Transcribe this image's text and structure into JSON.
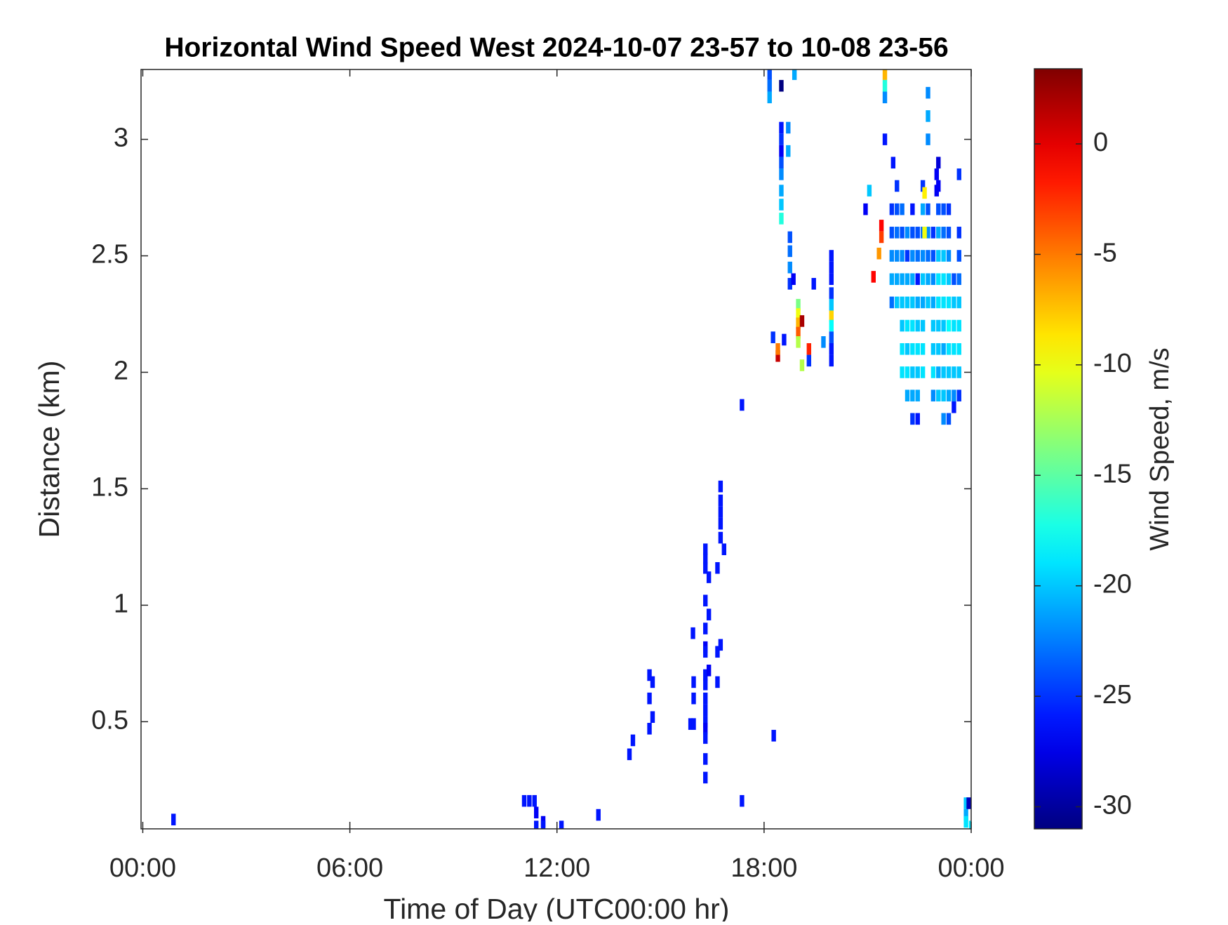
{
  "chart_data": {
    "type": "heatmap",
    "title": "Horizontal Wind Speed West 2024-10-07 23-57 to 10-08 23-56",
    "x_label": "Time of Day (UTC00:00 hr)",
    "y_label": "Distance (km)",
    "colorbar_label": "Wind Speed, m/s",
    "colormap": "jet",
    "xlim": [
      -0.05,
      24
    ],
    "xticks": [
      {
        "value": 0,
        "label": "00:00"
      },
      {
        "value": 6,
        "label": "06:00"
      },
      {
        "value": 12,
        "label": "12:00"
      },
      {
        "value": 18,
        "label": "18:00"
      },
      {
        "value": 24,
        "label": "00:00"
      }
    ],
    "ylim": [
      0.04,
      3.3
    ],
    "yticks": [
      0.5,
      1,
      1.5,
      2,
      2.5,
      3
    ],
    "clim": [
      -31,
      3.4
    ],
    "cticks": [
      -30,
      -25,
      -20,
      -15,
      -10,
      -5,
      0
    ],
    "cells": [
      [
        0.89,
        0.08,
        -26
      ],
      [
        11.05,
        0.16,
        -26
      ],
      [
        11.2,
        0.16,
        -26
      ],
      [
        11.35,
        0.16,
        -26
      ],
      [
        11.4,
        0.11,
        -27
      ],
      [
        11.6,
        0.07,
        -27
      ],
      [
        11.6,
        0.05,
        -26
      ],
      [
        11.4,
        0.05,
        -26
      ],
      [
        12.13,
        0.05,
        -26
      ],
      [
        13.2,
        0.1,
        -26
      ],
      [
        14.1,
        0.36,
        -26
      ],
      [
        14.2,
        0.42,
        -26
      ],
      [
        14.68,
        0.47,
        -26
      ],
      [
        14.77,
        0.52,
        -26
      ],
      [
        14.68,
        0.6,
        -26
      ],
      [
        14.68,
        0.7,
        -26
      ],
      [
        14.77,
        0.67,
        -26
      ],
      [
        15.94,
        0.88,
        -26
      ],
      [
        15.87,
        0.49,
        -26
      ],
      [
        15.96,
        0.49,
        -26
      ],
      [
        15.96,
        0.6,
        -26
      ],
      [
        15.96,
        0.67,
        -26
      ],
      [
        16.3,
        1.24,
        -26
      ],
      [
        16.3,
        1.2,
        -26
      ],
      [
        16.3,
        1.16,
        -26
      ],
      [
        16.3,
        1.02,
        -26
      ],
      [
        16.3,
        0.9,
        -26
      ],
      [
        16.3,
        0.82,
        -27
      ],
      [
        16.3,
        0.8,
        -26
      ],
      [
        16.3,
        0.7,
        -26
      ],
      [
        16.3,
        0.66,
        -26
      ],
      [
        16.3,
        0.6,
        -26
      ],
      [
        16.3,
        0.55,
        -26
      ],
      [
        16.3,
        0.5,
        -26
      ],
      [
        16.3,
        0.47,
        -27
      ],
      [
        16.3,
        0.43,
        -26
      ],
      [
        16.3,
        0.34,
        -26
      ],
      [
        16.3,
        0.26,
        -26
      ],
      [
        16.4,
        1.12,
        -26
      ],
      [
        16.4,
        0.96,
        -26
      ],
      [
        16.4,
        0.72,
        -27
      ],
      [
        16.65,
        1.16,
        -26
      ],
      [
        16.65,
        0.8,
        -26
      ],
      [
        16.74,
        0.83,
        -26
      ],
      [
        16.65,
        0.67,
        -26
      ],
      [
        16.74,
        1.51,
        -26
      ],
      [
        16.74,
        1.45,
        -26
      ],
      [
        16.74,
        1.4,
        -26
      ],
      [
        16.74,
        1.35,
        -26
      ],
      [
        16.74,
        1.29,
        -26
      ],
      [
        16.84,
        1.24,
        -26
      ],
      [
        17.36,
        1.86,
        -26
      ],
      [
        17.36,
        0.16,
        -26
      ],
      [
        18.28,
        0.44,
        -26
      ],
      [
        18.16,
        3.28,
        -24
      ],
      [
        18.16,
        3.23,
        -23
      ],
      [
        18.16,
        3.18,
        -21
      ],
      [
        18.5,
        3.23,
        -31
      ],
      [
        18.88,
        3.28,
        -21
      ],
      [
        18.5,
        3.05,
        -26
      ],
      [
        18.5,
        3.0,
        -25
      ],
      [
        18.5,
        2.95,
        -27
      ],
      [
        18.5,
        2.9,
        -24
      ],
      [
        18.7,
        3.05,
        -22
      ],
      [
        18.7,
        2.95,
        -21
      ],
      [
        18.5,
        2.85,
        -22
      ],
      [
        18.5,
        2.78,
        -21
      ],
      [
        18.5,
        2.72,
        -20
      ],
      [
        18.5,
        2.66,
        -17
      ],
      [
        18.75,
        2.58,
        -24
      ],
      [
        18.75,
        2.52,
        -23
      ],
      [
        18.75,
        2.45,
        -22
      ],
      [
        18.75,
        2.38,
        -25
      ],
      [
        18.85,
        2.4,
        -27
      ],
      [
        18.26,
        2.15,
        -25
      ],
      [
        18.4,
        2.07,
        1
      ],
      [
        18.4,
        2.1,
        -5
      ],
      [
        18.58,
        2.14,
        -26
      ],
      [
        18.99,
        2.29,
        -14
      ],
      [
        18.99,
        2.25,
        -10
      ],
      [
        18.99,
        2.21,
        -7
      ],
      [
        18.99,
        2.17,
        -4
      ],
      [
        18.99,
        2.13,
        -12
      ],
      [
        19.1,
        2.22,
        2
      ],
      [
        19.1,
        2.03,
        -12
      ],
      [
        19.3,
        2.1,
        -2
      ],
      [
        19.3,
        2.05,
        -25
      ],
      [
        19.44,
        2.38,
        -26
      ],
      [
        19.72,
        2.13,
        -22
      ],
      [
        19.95,
        2.29,
        -20
      ],
      [
        19.95,
        2.24,
        -8
      ],
      [
        19.95,
        2.2,
        -18
      ],
      [
        19.95,
        2.15,
        -24
      ],
      [
        19.95,
        2.1,
        -26
      ],
      [
        19.95,
        2.05,
        -26
      ],
      [
        19.95,
        2.5,
        -26
      ],
      [
        19.95,
        2.45,
        -26
      ],
      [
        19.95,
        2.4,
        -26
      ],
      [
        19.95,
        2.34,
        -25
      ],
      [
        20.94,
        2.7,
        -27
      ],
      [
        21.05,
        2.78,
        -20
      ],
      [
        21.17,
        2.41,
        -1
      ],
      [
        21.33,
        2.51,
        -6
      ],
      [
        21.4,
        2.63,
        -1
      ],
      [
        21.4,
        2.58,
        -3
      ],
      [
        21.5,
        3.28,
        -7
      ],
      [
        21.5,
        3.23,
        -17
      ],
      [
        21.5,
        3.18,
        -22
      ],
      [
        21.5,
        3.0,
        -26
      ],
      [
        21.74,
        2.9,
        -26
      ],
      [
        21.7,
        2.7,
        -25
      ],
      [
        21.7,
        2.6,
        -24
      ],
      [
        21.7,
        2.5,
        -22
      ],
      [
        21.7,
        2.4,
        -21
      ],
      [
        21.7,
        2.3,
        -23
      ],
      [
        21.85,
        2.8,
        -25
      ],
      [
        21.85,
        2.7,
        -24
      ],
      [
        21.85,
        2.6,
        -23
      ],
      [
        21.85,
        2.5,
        -22
      ],
      [
        21.85,
        2.4,
        -21
      ],
      [
        21.85,
        2.3,
        -20
      ],
      [
        22.0,
        2.7,
        -23
      ],
      [
        22.0,
        2.6,
        -24
      ],
      [
        22.0,
        2.5,
        -22
      ],
      [
        22.0,
        2.4,
        -21
      ],
      [
        22.0,
        2.3,
        -20
      ],
      [
        22.0,
        2.2,
        -20
      ],
      [
        22.0,
        2.1,
        -19
      ],
      [
        22.0,
        2.0,
        -19
      ],
      [
        22.15,
        2.6,
        -22
      ],
      [
        22.15,
        2.5,
        -25
      ],
      [
        22.15,
        2.4,
        -21
      ],
      [
        22.15,
        2.3,
        -20
      ],
      [
        22.15,
        2.2,
        -19
      ],
      [
        22.15,
        2.1,
        -20
      ],
      [
        22.15,
        2.0,
        -19
      ],
      [
        22.15,
        1.9,
        -21
      ],
      [
        22.3,
        2.7,
        -26
      ],
      [
        22.3,
        2.6,
        -24
      ],
      [
        22.3,
        2.5,
        -22
      ],
      [
        22.3,
        2.4,
        -21
      ],
      [
        22.3,
        2.3,
        -20
      ],
      [
        22.3,
        2.2,
        -19
      ],
      [
        22.3,
        2.1,
        -19
      ],
      [
        22.3,
        2.0,
        -20
      ],
      [
        22.3,
        1.9,
        -21
      ],
      [
        22.3,
        1.8,
        -25
      ],
      [
        22.45,
        2.6,
        -24
      ],
      [
        22.45,
        2.5,
        -23
      ],
      [
        22.45,
        2.4,
        -26
      ],
      [
        22.45,
        2.3,
        -21
      ],
      [
        22.45,
        2.2,
        -20
      ],
      [
        22.45,
        2.1,
        -19
      ],
      [
        22.45,
        2.0,
        -20
      ],
      [
        22.45,
        1.9,
        -21
      ],
      [
        22.45,
        1.8,
        -26
      ],
      [
        22.6,
        2.8,
        -25
      ],
      [
        22.6,
        2.7,
        -21
      ],
      [
        22.6,
        2.6,
        -23
      ],
      [
        22.6,
        2.5,
        -22
      ],
      [
        22.6,
        2.4,
        -20
      ],
      [
        22.6,
        2.3,
        -21
      ],
      [
        22.6,
        2.2,
        -20
      ],
      [
        22.6,
        2.1,
        -19
      ],
      [
        22.6,
        2.0,
        -19
      ],
      [
        22.75,
        3.2,
        -22
      ],
      [
        22.75,
        3.1,
        -21
      ],
      [
        22.75,
        3.0,
        -22
      ],
      [
        22.75,
        2.7,
        -24
      ],
      [
        22.75,
        2.6,
        -22
      ],
      [
        22.75,
        2.5,
        -23
      ],
      [
        22.75,
        2.4,
        -21
      ],
      [
        22.75,
        2.3,
        -20
      ],
      [
        22.9,
        2.6,
        -25
      ],
      [
        22.9,
        2.5,
        -24
      ],
      [
        22.9,
        2.4,
        -22
      ],
      [
        22.9,
        2.3,
        -21
      ],
      [
        22.9,
        2.2,
        -20
      ],
      [
        22.9,
        2.1,
        -20
      ],
      [
        22.9,
        2.0,
        -19
      ],
      [
        22.9,
        1.9,
        -22
      ],
      [
        23.05,
        2.9,
        -28
      ],
      [
        23.05,
        2.8,
        -27
      ],
      [
        23.05,
        2.7,
        -24
      ],
      [
        23.05,
        2.6,
        -21
      ],
      [
        23.05,
        2.5,
        -20
      ],
      [
        23.05,
        2.4,
        -19
      ],
      [
        23.05,
        2.3,
        -19
      ],
      [
        23.05,
        2.2,
        -20
      ],
      [
        23.05,
        2.1,
        -20
      ],
      [
        23.05,
        2.0,
        -21
      ],
      [
        23.05,
        1.9,
        -20
      ],
      [
        23.2,
        2.7,
        -24
      ],
      [
        23.2,
        2.6,
        -23
      ],
      [
        23.2,
        2.5,
        -20
      ],
      [
        23.2,
        2.4,
        -19
      ],
      [
        23.2,
        2.3,
        -19
      ],
      [
        23.2,
        2.2,
        -20
      ],
      [
        23.2,
        2.1,
        -21
      ],
      [
        23.2,
        2.0,
        -20
      ],
      [
        23.2,
        1.9,
        -20
      ],
      [
        23.2,
        1.8,
        -22
      ],
      [
        23.35,
        2.7,
        -25
      ],
      [
        23.35,
        2.6,
        -24
      ],
      [
        23.35,
        2.5,
        -22
      ],
      [
        23.35,
        2.4,
        -20
      ],
      [
        23.35,
        2.3,
        -19
      ],
      [
        23.35,
        2.2,
        -18
      ],
      [
        23.35,
        2.1,
        -19
      ],
      [
        23.35,
        2.0,
        -20
      ],
      [
        23.35,
        1.9,
        -21
      ],
      [
        23.35,
        1.8,
        -24
      ],
      [
        23.5,
        2.4,
        -24
      ],
      [
        23.5,
        2.3,
        -20
      ],
      [
        23.5,
        2.2,
        -19
      ],
      [
        23.5,
        2.1,
        -19
      ],
      [
        23.5,
        2.0,
        -20
      ],
      [
        23.5,
        1.9,
        -22
      ],
      [
        23.5,
        1.85,
        -26
      ],
      [
        23.65,
        2.6,
        -25
      ],
      [
        23.65,
        2.5,
        -24
      ],
      [
        23.65,
        2.4,
        -23
      ],
      [
        23.65,
        2.3,
        -20
      ],
      [
        23.65,
        2.2,
        -19
      ],
      [
        23.65,
        2.1,
        -19
      ],
      [
        23.65,
        2.0,
        -20
      ],
      [
        23.65,
        1.9,
        -25
      ],
      [
        22.65,
        2.77,
        -9
      ],
      [
        22.65,
        2.6,
        -10
      ],
      [
        23.0,
        2.85,
        -27
      ],
      [
        23.0,
        2.78,
        -27
      ],
      [
        23.65,
        2.85,
        -25
      ],
      [
        23.85,
        0.15,
        -20
      ],
      [
        23.85,
        0.1,
        -21
      ],
      [
        23.85,
        0.07,
        -19
      ],
      [
        23.93,
        0.15,
        -29
      ],
      [
        24.0,
        0.05,
        -19
      ]
    ]
  }
}
